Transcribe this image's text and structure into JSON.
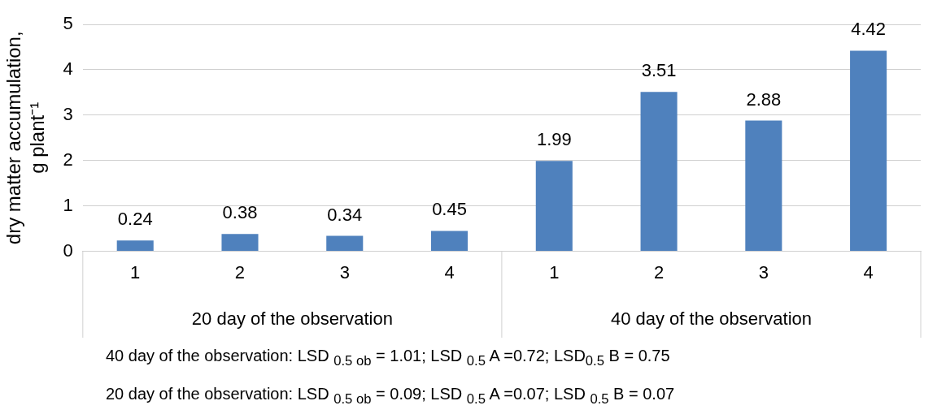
{
  "chart_data": {
    "type": "bar",
    "ylabel": "dry matter accumulation, g plant⁻¹",
    "categories": [
      "1",
      "2",
      "3",
      "4",
      "1",
      "2",
      "3",
      "4"
    ],
    "values": [
      0.24,
      0.38,
      0.34,
      0.45,
      1.99,
      3.51,
      2.88,
      4.42
    ],
    "color": "#4f81bd",
    "ylim": [
      0,
      5
    ],
    "yticks": [
      0,
      1,
      2,
      3,
      4,
      5
    ],
    "grid": "y",
    "legend": false,
    "data_labels": true,
    "annotations": [
      "20 day of the observation",
      "40 day of the observation",
      "40 day of the observation: LSD $_{0.5 ob}$ = 1.01; LSD $_{0.5}$ A =0.72; LSD$_{0.5}$ B = 0.75",
      "20 day of the observation: LSD $_{0.5 ob}$ = 0.09; LSD $_{0.5}$ A =0.07; LSD $_{0.5}$ B = 0.07"
    ]
  }
}
